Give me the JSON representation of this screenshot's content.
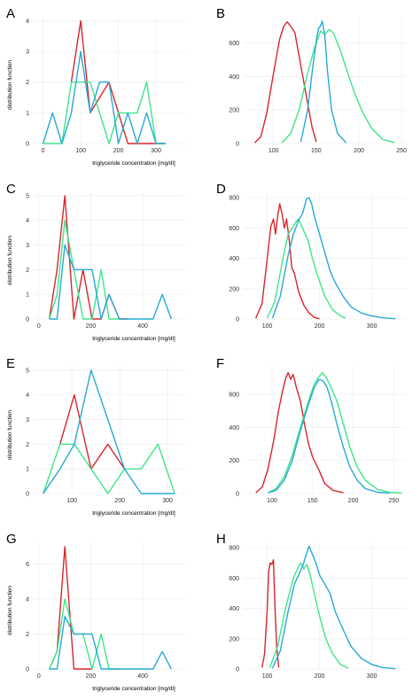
{
  "colors": {
    "red": "#d7262b",
    "green": "#3ee58a",
    "blue": "#27a9d6"
  },
  "chart_data": [
    {
      "letter": "A",
      "type": "line",
      "xlabel": "triglyceride concentration [mg/dl]",
      "ylabel": "distribution function",
      "xlim": [
        -25,
        375
      ],
      "ylim": [
        0,
        4.1
      ],
      "xticks": [
        0,
        100,
        200,
        300
      ],
      "yticks": [
        0,
        1,
        2,
        3,
        4
      ],
      "series": [
        {
          "color": "red",
          "x": [
            75,
            100,
            125,
            175,
            225,
            250,
            300,
            325
          ],
          "y": [
            2,
            4,
            1,
            2,
            0,
            0,
            0,
            0
          ]
        },
        {
          "color": "green",
          "x": [
            0,
            50,
            75,
            100,
            125,
            175,
            200,
            225,
            250,
            275,
            300,
            325
          ],
          "y": [
            0,
            0,
            2,
            2,
            2,
            0,
            1,
            1,
            1,
            2,
            0,
            0
          ]
        },
        {
          "color": "blue",
          "x": [
            0,
            25,
            50,
            75,
            100,
            125,
            150,
            175,
            200,
            225,
            250,
            275,
            300,
            325
          ],
          "y": [
            0,
            1,
            0,
            1,
            3,
            1,
            2,
            2,
            0,
            1,
            0,
            1,
            0,
            0
          ]
        }
      ]
    },
    {
      "letter": "B",
      "type": "line",
      "xlabel": "",
      "ylabel": "",
      "xlim": [
        65,
        255
      ],
      "ylim": [
        0,
        750
      ],
      "xticks": [
        100,
        150,
        200,
        250
      ],
      "yticks": [
        0,
        200,
        400,
        600
      ],
      "series": [
        {
          "color": "red",
          "x": [
            78,
            85,
            92,
            100,
            107,
            112,
            116,
            120,
            125,
            130,
            135,
            140,
            145,
            150
          ],
          "y": [
            5,
            40,
            180,
            420,
            620,
            700,
            725,
            700,
            660,
            520,
            380,
            240,
            100,
            10
          ]
        },
        {
          "color": "green",
          "x": [
            110,
            120,
            130,
            140,
            148,
            155,
            160,
            165,
            170,
            178,
            185,
            195,
            205,
            215,
            228,
            242
          ],
          "y": [
            5,
            60,
            200,
            420,
            570,
            670,
            650,
            680,
            660,
            560,
            450,
            300,
            180,
            90,
            25,
            5
          ]
        },
        {
          "color": "blue",
          "x": [
            132,
            140,
            147,
            151,
            153,
            155,
            157,
            160,
            163,
            168,
            175,
            185
          ],
          "y": [
            10,
            200,
            500,
            640,
            690,
            700,
            730,
            650,
            440,
            200,
            60,
            5
          ]
        }
      ]
    },
    {
      "letter": "C",
      "type": "line",
      "xlabel": "triglyceride concentration [mg/dl]",
      "ylabel": "distribution function",
      "xlim": [
        -20,
        560
      ],
      "ylim": [
        0,
        5.1
      ],
      "xticks": [
        0,
        200,
        400
      ],
      "yticks": [
        0,
        1,
        2,
        3,
        4,
        5
      ],
      "series": [
        {
          "color": "red",
          "x": [
            40,
            70,
            100,
            135,
            170,
            205,
            240,
            270,
            310,
            340
          ],
          "y": [
            0,
            2,
            5,
            0,
            2,
            0,
            0,
            1,
            0,
            0
          ]
        },
        {
          "color": "green",
          "x": [
            40,
            70,
            100,
            135,
            170,
            205,
            240,
            270,
            310
          ],
          "y": [
            0,
            1,
            4,
            2,
            0,
            0,
            2,
            0,
            0
          ]
        },
        {
          "color": "blue",
          "x": [
            40,
            70,
            100,
            135,
            170,
            205,
            240,
            270,
            310,
            440,
            475,
            510
          ],
          "y": [
            0,
            0,
            3,
            2,
            2,
            2,
            0,
            1,
            0,
            0,
            1,
            0
          ]
        }
      ]
    },
    {
      "letter": "D",
      "type": "line",
      "xlabel": "",
      "ylabel": "",
      "xlim": [
        55,
        365
      ],
      "ylim": [
        0,
        830
      ],
      "xticks": [
        100,
        200,
        300
      ],
      "yticks": [
        0,
        200,
        400,
        600,
        800
      ],
      "series": [
        {
          "color": "red",
          "x": [
            78,
            90,
            100,
            107,
            112,
            116,
            120,
            124,
            128,
            133,
            137,
            142,
            147,
            152,
            160,
            170,
            180,
            190,
            200
          ],
          "y": [
            5,
            100,
            400,
            610,
            660,
            560,
            680,
            760,
            700,
            600,
            660,
            520,
            340,
            300,
            180,
            90,
            40,
            10,
            2
          ]
        },
        {
          "color": "green",
          "x": [
            100,
            115,
            130,
            140,
            148,
            155,
            160,
            165,
            170,
            178,
            185,
            195,
            210,
            225,
            240,
            250
          ],
          "y": [
            5,
            120,
            400,
            560,
            600,
            640,
            660,
            620,
            580,
            520,
            420,
            300,
            150,
            60,
            20,
            5
          ]
        },
        {
          "color": "blue",
          "x": [
            110,
            125,
            140,
            150,
            160,
            168,
            175,
            180,
            185,
            190,
            200,
            210,
            220,
            230,
            245,
            260,
            280,
            300,
            320,
            345
          ],
          "y": [
            5,
            150,
            420,
            560,
            650,
            700,
            790,
            800,
            760,
            680,
            560,
            440,
            320,
            240,
            150,
            80,
            40,
            20,
            8,
            2
          ]
        }
      ]
    },
    {
      "letter": "E",
      "type": "line",
      "xlabel": "triglyceride concentration [mg/dl]",
      "ylabel": "distribution function",
      "xlim": [
        20,
        335
      ],
      "ylim": [
        0,
        5.1
      ],
      "xticks": [
        100,
        200,
        300
      ],
      "yticks": [
        0,
        1,
        2,
        3,
        4,
        5
      ],
      "series": [
        {
          "color": "red",
          "x": [
            75,
            105,
            140,
            175,
            210
          ],
          "y": [
            2,
            4,
            1,
            2,
            1
          ]
        },
        {
          "color": "green",
          "x": [
            40,
            75,
            105,
            140,
            175,
            210,
            245,
            280,
            315
          ],
          "y": [
            0,
            2,
            2,
            1,
            0,
            1,
            1,
            2,
            0
          ]
        },
        {
          "color": "blue",
          "x": [
            40,
            75,
            105,
            140,
            175,
            210,
            245,
            280,
            315
          ],
          "y": [
            0,
            1,
            2,
            5,
            3,
            1,
            0,
            0,
            0
          ]
        }
      ]
    },
    {
      "letter": "F",
      "type": "line",
      "xlabel": "",
      "ylabel": "",
      "xlim": [
        65,
        265
      ],
      "ylim": [
        0,
        760
      ],
      "xticks": [
        100,
        150,
        200,
        250
      ],
      "yticks": [
        0,
        200,
        400,
        600
      ],
      "series": [
        {
          "color": "red",
          "x": [
            80,
            88,
            95,
            102,
            108,
            113,
            117,
            120,
            123,
            126,
            130,
            135,
            140,
            145,
            150,
            158,
            165,
            175,
            188
          ],
          "y": [
            5,
            40,
            150,
            320,
            500,
            620,
            700,
            730,
            690,
            720,
            640,
            560,
            420,
            300,
            220,
            140,
            60,
            20,
            5
          ]
        },
        {
          "color": "green",
          "x": [
            95,
            105,
            115,
            125,
            135,
            145,
            152,
            157,
            162,
            167,
            172,
            180,
            188,
            196,
            205,
            215,
            230,
            245,
            260
          ],
          "y": [
            5,
            30,
            100,
            230,
            400,
            560,
            660,
            700,
            730,
            700,
            650,
            560,
            420,
            280,
            160,
            80,
            25,
            8,
            2
          ]
        },
        {
          "color": "blue",
          "x": [
            95,
            105,
            115,
            125,
            135,
            145,
            152,
            158,
            163,
            168,
            173,
            180,
            188,
            196,
            205,
            215,
            230,
            245
          ],
          "y": [
            5,
            20,
            80,
            200,
            380,
            540,
            640,
            690,
            680,
            640,
            560,
            420,
            280,
            160,
            80,
            30,
            8,
            2
          ]
        }
      ]
    },
    {
      "letter": "G",
      "type": "line",
      "xlabel": "triglyceride concentration [mg/dl]",
      "ylabel": "distribution function",
      "xlim": [
        -20,
        560
      ],
      "ylim": [
        0,
        7.2
      ],
      "xticks": [
        0,
        200,
        400
      ],
      "yticks": [
        0,
        2,
        4,
        6
      ],
      "series": [
        {
          "color": "red",
          "x": [
            40,
            70,
            100,
            135,
            170,
            205
          ],
          "y": [
            0,
            1,
            7,
            0,
            0,
            0
          ]
        },
        {
          "color": "green",
          "x": [
            40,
            70,
            100,
            135,
            170,
            205,
            240,
            270,
            310
          ],
          "y": [
            0,
            1,
            4,
            2,
            2,
            0,
            2,
            0,
            0
          ]
        },
        {
          "color": "blue",
          "x": [
            40,
            70,
            100,
            135,
            170,
            205,
            240,
            270,
            310,
            440,
            475,
            510
          ],
          "y": [
            0,
            0,
            3,
            2,
            2,
            2,
            0,
            0,
            0,
            0,
            1,
            0
          ]
        }
      ]
    },
    {
      "letter": "H",
      "type": "line",
      "xlabel": "",
      "ylabel": "",
      "xlim": [
        55,
        365
      ],
      "ylim": [
        0,
        830
      ],
      "xticks": [
        100,
        200,
        300
      ],
      "yticks": [
        0,
        200,
        400,
        600,
        800
      ],
      "series": [
        {
          "color": "red",
          "x": [
            90,
            95,
            100,
            103,
            106,
            109,
            112,
            115,
            118,
            122
          ],
          "y": [
            10,
            100,
            400,
            650,
            700,
            690,
            720,
            400,
            150,
            10
          ]
        },
        {
          "color": "green",
          "x": [
            105,
            120,
            135,
            150,
            158,
            164,
            170,
            176,
            182,
            190,
            200,
            212,
            225,
            240,
            255
          ],
          "y": [
            10,
            150,
            400,
            600,
            660,
            700,
            660,
            690,
            620,
            500,
            350,
            200,
            100,
            30,
            5
          ]
        },
        {
          "color": "blue",
          "x": [
            110,
            125,
            140,
            152,
            160,
            168,
            175,
            180,
            186,
            193,
            200,
            210,
            220,
            230,
            245,
            260,
            280,
            300,
            320,
            345
          ],
          "y": [
            5,
            120,
            380,
            560,
            620,
            680,
            760,
            810,
            760,
            700,
            620,
            560,
            500,
            380,
            260,
            150,
            70,
            30,
            10,
            2
          ]
        }
      ]
    }
  ]
}
